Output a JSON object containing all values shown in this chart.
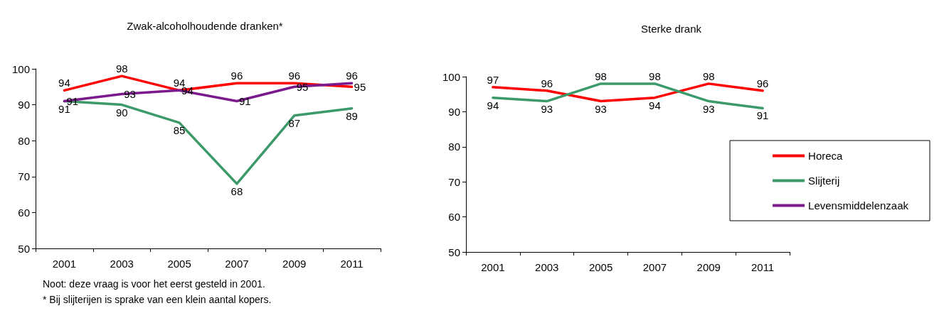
{
  "chart_data": [
    {
      "type": "line",
      "title": "Zwak-alcoholhoudende dranken*",
      "categories": [
        "2001",
        "2003",
        "2005",
        "2007",
        "2009",
        "2011"
      ],
      "series": [
        {
          "color": "#ff0000",
          "values": [
            94,
            98,
            94,
            96,
            96,
            95
          ]
        },
        {
          "color": "#3c9a6a",
          "values": [
            91,
            90,
            85,
            68,
            87,
            89
          ]
        },
        {
          "color": "#7b1a8c",
          "values": [
            91,
            93,
            94,
            91,
            95,
            96
          ]
        }
      ],
      "ylim": [
        50,
        100
      ],
      "yticks": [
        50,
        60,
        70,
        80,
        90,
        100
      ],
      "grid": false,
      "legend": false,
      "data_labels": true,
      "marker": "none",
      "line_style": "solid",
      "annotations": [
        "Noot: deze vraag is voor het eerst gesteld in 2001.",
        "* Bij slijterijen is sprake van een klein aantal kopers."
      ]
    },
    {
      "type": "line",
      "title": "Sterke drank",
      "categories": [
        "2001",
        "2003",
        "2005",
        "2007",
        "2009",
        "2011"
      ],
      "series": [
        {
          "name": "Horeca",
          "color": "#ff0000",
          "values": [
            97,
            96,
            93,
            94,
            98,
            96
          ]
        },
        {
          "name": "Slijterij",
          "color": "#3c9a6a",
          "values": [
            94,
            93,
            98,
            98,
            93,
            91
          ]
        },
        {
          "name": "Levensmiddelenzaak",
          "color": "#7b1a8c",
          "values": [
            null,
            null,
            null,
            null,
            null,
            null
          ]
        }
      ],
      "ylim": [
        50,
        100
      ],
      "yticks": [
        50,
        60,
        70,
        80,
        90,
        100
      ],
      "grid": false,
      "legend": "right",
      "data_labels": true,
      "marker": "none",
      "line_style": "solid"
    }
  ]
}
